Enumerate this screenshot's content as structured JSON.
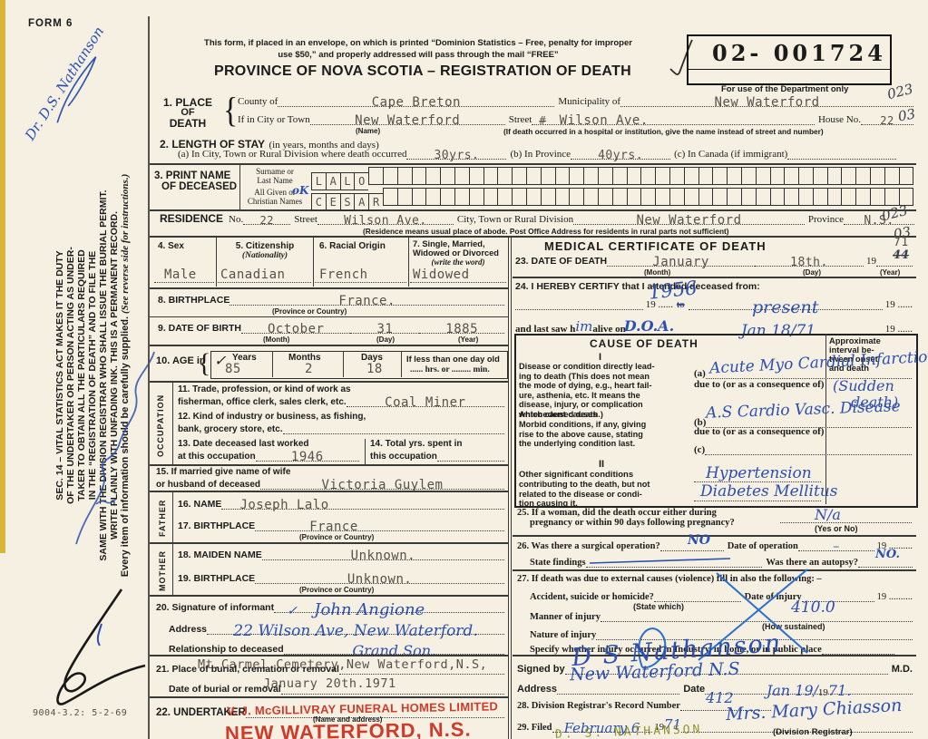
{
  "margin": {
    "form_no": "FORM 6",
    "doctor_note": "Dr. D.S. Nathanson",
    "sec14_lines": [
      "SEC. 14 – VITAL STATISTICS ACT MAKES IT THE DUTY",
      "OF THE UNDERTAKER OR PERSON ACTING AS UNDER-",
      "TAKER TO OBTAIN ALL THE PARTICULARS REQUIRED",
      "IN THE “REGISTRATION OF DEATH” AND TO FILE THE",
      "SAME WITH THE DIVISION REGISTRAR WHO SHALL ISSUE THE BURIAL PERMIT.",
      "WRITE PLAINLY WITH UNFADING INK. THIS IS A PERMANENT RECORD."
    ],
    "every_item": "Every item of information should be carefully supplied.",
    "see_reverse": "(See reverse side for instructions.)",
    "print_code": "9004-3.2: 5-2-69"
  },
  "header": {
    "notice1": "This form, if placed in an envelope, on which is printed “Dominion Statistics – Free, penalty for improper",
    "notice2": "use $50,” and properly addressed will pass through the mail “FREE”",
    "title": "PROVINCE OF NOVA SCOTIA – REGISTRATION OF DEATH",
    "stamp_number": "02- 001724",
    "dept_only": "For use of the Department only",
    "mark1": "023",
    "mark2": "03"
  },
  "place": {
    "num": "1. PLACE",
    "of": "OF",
    "death": "DEATH",
    "county_label": "County of",
    "county_value": "Cape Breton",
    "municipality_label": "Municipality of",
    "municipality_value": "New Waterford",
    "city_label": "If in City or Town",
    "city_value": "New Waterford",
    "name_note": "(Name)",
    "street_label": "Street",
    "street_struck": "#",
    "street_value": "Wilson Ave.",
    "house_label": "House No.",
    "house_value": "22",
    "hospital_note": "(If death occurred in a hospital or institution, give the name instead of street and number)"
  },
  "stay": {
    "label": "2. LENGTH OF STAY",
    "sub": "(in years, months and days)",
    "a_label": "(a) In City, Town or Rural Division where death occurred",
    "a_value": "30yrs.",
    "b_label": "(b) In Province",
    "b_value": "40yrs.",
    "c_label": "(c) In Canada (if immigrant)"
  },
  "name": {
    "label1": "3. PRINT NAME",
    "label2": "OF DECEASED",
    "surname_label1": "Surname or",
    "surname_label2": "Last Name",
    "given_label1": "All Given or",
    "given_label2": "Christian Names",
    "hand_ok": "oK",
    "rows": [
      "LALO",
      "CESAR"
    ]
  },
  "residence": {
    "label": "RESIDENCE",
    "no_label": "No.",
    "no_value": "22",
    "street_label": "Street",
    "street_value": "Wilson Ave.",
    "city_label": "City, Town or Rural Division",
    "city_value": "New Waterford",
    "prov_label": "Province",
    "prov_value": "N.S.",
    "note": "(Residence means usual place of abode. Post Office Address for residents in rural parts not sufficient)",
    "mark1": "023",
    "mark2": "03"
  },
  "personal": {
    "sex_label": "4. Sex",
    "sex_value": "Male",
    "cit_label": "5. Citizenship",
    "cit_sub": "(Nationality)",
    "cit_value": "Canadian",
    "race_label": "6. Racial Origin",
    "race_value": "French",
    "marital_label1": "7. Single, Married,",
    "marital_label2": "Widowed or Divorced",
    "marital_sub": "(write the word)",
    "marital_value": "Widowed",
    "birthplace_label": "8. BIRTHPLACE",
    "birthplace_value": "France.",
    "birthplace_note": "(Province or Country)",
    "dob_label": "9. DATE OF BIRTH",
    "dob_month": "October",
    "dob_month_note": "(Month)",
    "dob_day": "31",
    "dob_day_note": "(Day)",
    "dob_year": "1885",
    "dob_year_note": "(Year)",
    "age_label": "10. AGE in",
    "age_check": "✓",
    "years_label": "Years",
    "years_value": "85",
    "months_label": "Months",
    "months_value": "2",
    "days_label": "Days",
    "days_value": "18",
    "less_label": "If less than one day old",
    "less_sub": "...... hrs. or ......... min."
  },
  "occupation": {
    "vert": "OCCUPATION",
    "t11a": "11. Trade, profession, or kind of work as",
    "t11b": "fisherman, office clerk, sales clerk, etc.",
    "v11": "Coal Miner",
    "t12a": "12. Kind of industry or business, as fishing,",
    "t12b": "bank, grocery store, etc.",
    "t13a": "13. Date deceased last worked",
    "t13b": "at this occupation",
    "v13": "1946",
    "t14a": "14. Total yrs. spent in",
    "t14b": "this occupation"
  },
  "family": {
    "t15a": "15. If married give name of wife",
    "t15b": "or husband of deceased",
    "v15": "Victoria Guylem",
    "father": "FATHER",
    "t16": "16. NAME",
    "v16": "Joseph Lalo",
    "t17": "17. BIRTHPLACE",
    "v17": "France",
    "n17": "(Province or Country)",
    "mother": "MOTHER",
    "t18": "18. MAIDEN NAME",
    "v18": "Unknown.",
    "t19": "19. BIRTHPLACE",
    "v19": "Unknown.",
    "n19": "(Province or Country)"
  },
  "informant": {
    "t20": "20. Signature of informant",
    "check": "✓",
    "v20": "John Angione",
    "addr_label": "Address",
    "addr_value": "22 Wilson Ave, New Waterford.",
    "rel_label": "Relationship to deceased",
    "rel_value": "Grand Son."
  },
  "burial": {
    "t21": "21. Place of burial, cremation or removal",
    "v21": "Mt.Carmel Cemetery,New Waterford,N.S,",
    "date_label": "Date of burial or removal",
    "date_value": "January 20th.1971"
  },
  "undertaker": {
    "t22": "22. UNDERTAKER",
    "stamp1": "V. J. McGILLIVRAY FUNERAL HOMES LIMITED",
    "note": "(Name and address)",
    "stamp2": "NEW WATERFORD, N.S."
  },
  "medical": {
    "title": "MEDICAL CERTIFICATE OF DEATH",
    "mark_typed": "71",
    "mark_struck": "44",
    "t23": "23. DATE OF DEATH",
    "month": "January",
    "month_note": "(Month)",
    "day": "18th.",
    "day_note": "(Day)",
    "year19": "19",
    "year_note": "(Year)",
    "t24": "24. I HEREBY CERTIFY that I attended deceased from:",
    "from_value": "1956",
    "pre19a": "19 ......",
    "to_label": "to",
    "to_value": "present",
    "pre19b": "19 ......",
    "lastsaw": "and last saw h",
    "him": "im",
    "aliveon": "alive on",
    "doa": "D.O.A.",
    "lastsaw_value": "Jan 18/71",
    "pre19c": "19 ......"
  },
  "cause": {
    "title": "CAUSE OF DEATH",
    "interval_lines": [
      "Approximate",
      "interval be-",
      "tween onset",
      "and death"
    ],
    "roman1": "I",
    "disease_lines": [
      "Disease or condition directly lead-",
      "ing to death (This does not mean",
      "the mode of dying, e.g., heart fail-",
      "ure, asthenia, etc. It means the",
      "disease, injury, or complication",
      "which caused death.)"
    ],
    "a_label": "(a)",
    "a_value": "Acute Myo Cardial Infarction",
    "dueto1": "due to (or as a consequence of)",
    "interval_value1": "(Sudden",
    "interval_value2": "death)",
    "antecedent_lines": [
      "Antecedent causes",
      "Morbid conditions, if any, giving",
      "rise to the above cause, stating",
      "the underlying condition last."
    ],
    "b_label": "(b)",
    "b_value": "A.S Cardio Vasc. Disease",
    "dueto2": "due to (or as a consequence of)",
    "c_label": "(c)",
    "roman2": "II",
    "other_lines": [
      "Other significant conditions",
      "contributing to the death, but not",
      "related to the disease or condi-",
      "tion causing it."
    ],
    "other_value1": "Hypertension",
    "other_value2": "Diabetes Mellitus"
  },
  "questions": {
    "t25a": "25. If a woman, did the death occur either during",
    "t25b": "pregnancy or within 90 days following pregnancy?",
    "v25": "N/a",
    "n25": "(Yes or No)",
    "t26": "26. Was there a surgical operation?",
    "v26a": "NO",
    "op_label": "Date of operation",
    "y19a": "19 ..........",
    "findings_label": "State findings",
    "autopsy_label": "Was there an autopsy?",
    "v26b": "NO.",
    "t27": "27. If death was due to external causes (violence) fill in also the following: –",
    "ash_label": "Accident, suicide or homicide?",
    "statewhich": "(State which)",
    "injdate_label": "Date of injury",
    "y19b": "19 ..........",
    "manner_label": "Manner of injury",
    "manner_value": "410.0",
    "how_note": "(How sustained)",
    "nature_label": "Nature of injury",
    "specify_label": "Specify whether injury occurred in Industry, in home, or in public place"
  },
  "signed": {
    "signed_label": "Signed by",
    "signature": "D S Nathanson",
    "md": "M.D.",
    "addr_label": "Address",
    "addr_value": "New Waterford N.S",
    "date_label": "Date",
    "date_value": "Jan 19/",
    "date19": "19",
    "date_year": "71."
  },
  "registrar": {
    "t28": "28. Division Registrar's Record Number",
    "v28": "412",
    "t29": "29. Filed",
    "v29_date": "February 6",
    "y19": "19",
    "v29_year": "71",
    "v29_name": "Mrs. Mary Chiasson",
    "note": "(Division Registrar)",
    "typed_name": "D. S. NATHANSON"
  }
}
